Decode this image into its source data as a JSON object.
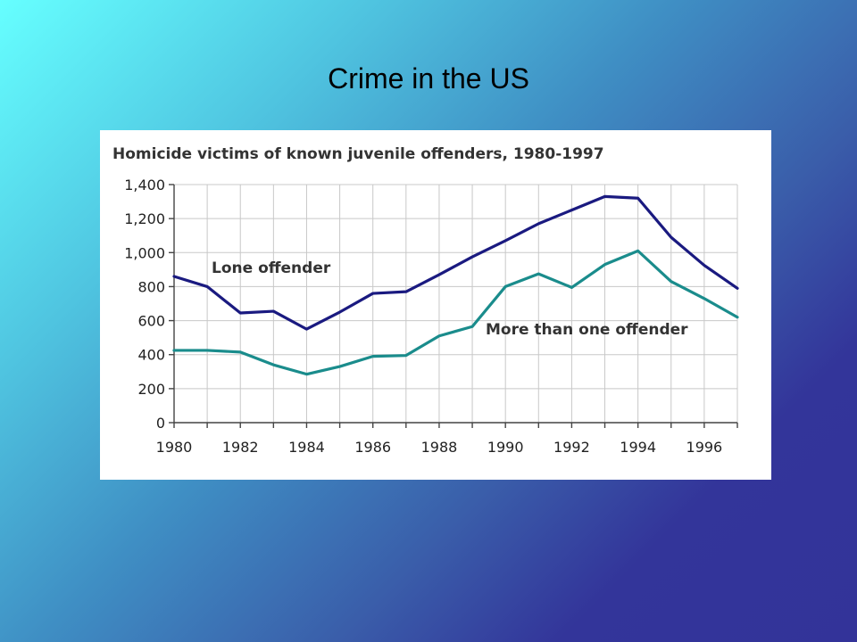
{
  "slide": {
    "title": "Crime in the US"
  },
  "chart_data": {
    "type": "line",
    "title": "Homicide victims of known juvenile offenders, 1980-1997",
    "xlabel": "",
    "ylabel": "",
    "x": [
      1980,
      1981,
      1982,
      1983,
      1984,
      1985,
      1986,
      1987,
      1988,
      1989,
      1990,
      1991,
      1992,
      1993,
      1994,
      1995,
      1996,
      1997
    ],
    "xlim": [
      1980,
      1997
    ],
    "ylim": [
      0,
      1400
    ],
    "x_ticks": [
      "1980",
      "1982",
      "1984",
      "1986",
      "1988",
      "1990",
      "1992",
      "1994",
      "1996"
    ],
    "y_ticks": [
      "0",
      "200",
      "400",
      "600",
      "800",
      "1,000",
      "1,200",
      "1,400"
    ],
    "grid": true,
    "legend": "none",
    "series": [
      {
        "name": "Lone offender",
        "color": "#1a1a80",
        "values": [
          860,
          800,
          645,
          655,
          550,
          650,
          760,
          770,
          870,
          975,
          1070,
          1170,
          1250,
          1330,
          1320,
          1090,
          925,
          790
        ]
      },
      {
        "name": "More than one offender",
        "color": "#1a8c8c",
        "values": [
          425,
          425,
          415,
          340,
          285,
          330,
          390,
          395,
          510,
          565,
          800,
          875,
          795,
          930,
          1010,
          830,
          730,
          620
        ]
      }
    ]
  }
}
